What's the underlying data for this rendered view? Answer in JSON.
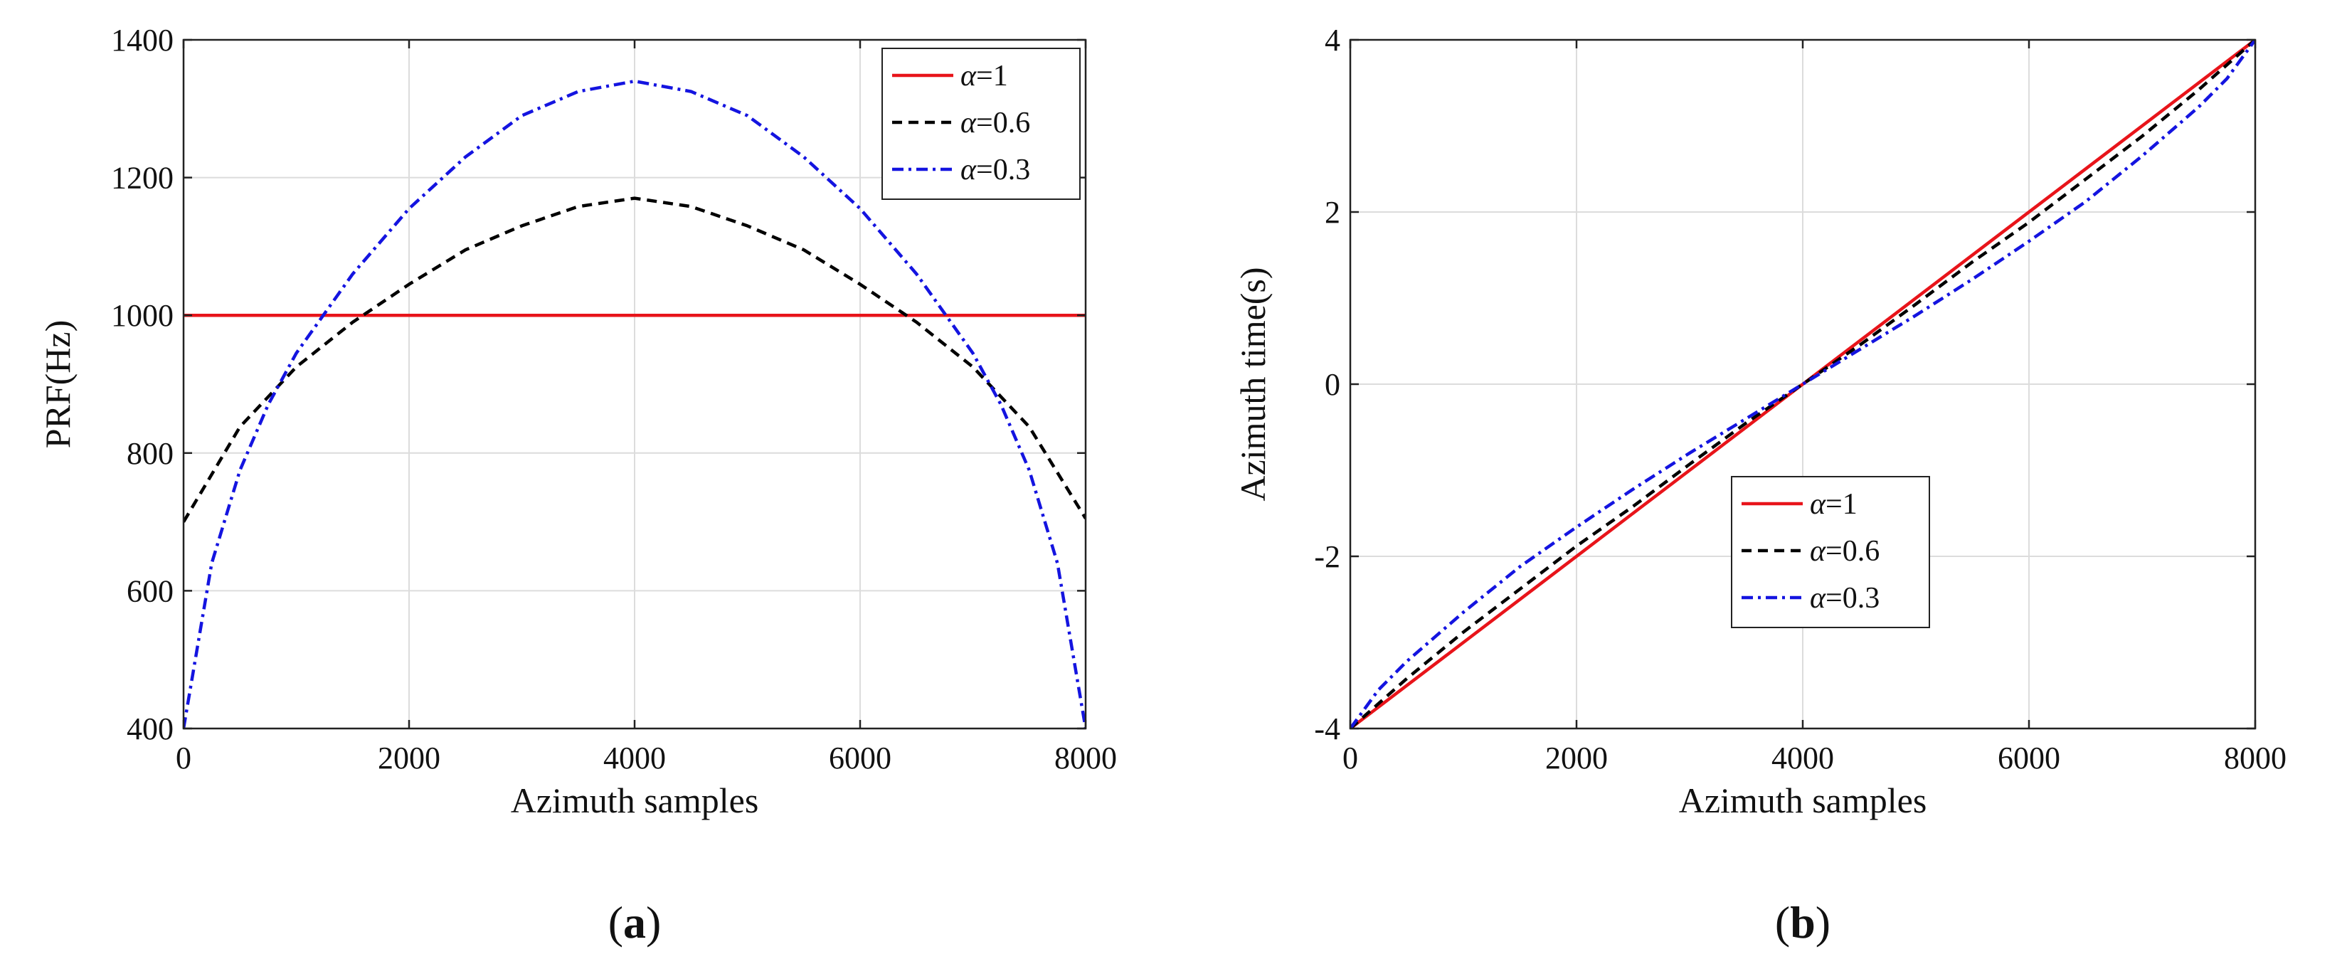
{
  "chart_data": [
    {
      "id": "a",
      "type": "line",
      "caption_letter": "a",
      "xlabel": "Azimuth samples",
      "ylabel": "PRF(Hz)",
      "xlim": [
        0,
        8000
      ],
      "ylim": [
        400,
        1400
      ],
      "xticks": [
        0,
        2000,
        4000,
        6000,
        8000
      ],
      "yticks": [
        400,
        600,
        800,
        1000,
        1200,
        1400
      ],
      "grid": true,
      "legend_position": "top-right",
      "series": [
        {
          "name": "α=1",
          "symbol": "α",
          "value_label": "=1",
          "color": "#e8141a",
          "style": "solid",
          "x": [
            0,
            1000,
            2000,
            3000,
            4000,
            5000,
            6000,
            7000,
            8000
          ],
          "y": [
            1000,
            1000,
            1000,
            1000,
            1000,
            1000,
            1000,
            1000,
            1000
          ]
        },
        {
          "name": "α=0.6",
          "symbol": "α",
          "value_label": "=0.6",
          "color": "#000000",
          "style": "dashed",
          "x": [
            0,
            500,
            1000,
            1500,
            2000,
            2500,
            3000,
            3500,
            4000,
            4500,
            5000,
            5500,
            6000,
            6500,
            7000,
            7500,
            8000
          ],
          "y": [
            700,
            838,
            925,
            990,
            1045,
            1095,
            1130,
            1158,
            1170,
            1158,
            1130,
            1095,
            1045,
            990,
            925,
            838,
            705
          ]
        },
        {
          "name": "α=0.3",
          "symbol": "α",
          "value_label": "=0.3",
          "color": "#1414e0",
          "style": "dashdot",
          "x": [
            0,
            250,
            500,
            750,
            1000,
            1500,
            2000,
            2500,
            3000,
            3500,
            4000,
            4500,
            5000,
            5500,
            6000,
            6500,
            7000,
            7250,
            7500,
            7750,
            8000
          ],
          "y": [
            400,
            640,
            775,
            870,
            945,
            1060,
            1155,
            1230,
            1290,
            1325,
            1340,
            1325,
            1290,
            1230,
            1155,
            1060,
            945,
            870,
            775,
            640,
            400
          ]
        }
      ]
    },
    {
      "id": "b",
      "type": "line",
      "caption_letter": "b",
      "xlabel": "Azimuth samples",
      "ylabel": "Azimuth time(s)",
      "xlim": [
        0,
        8000
      ],
      "ylim": [
        -4,
        4
      ],
      "xticks": [
        0,
        2000,
        4000,
        6000,
        8000
      ],
      "yticks": [
        -4,
        -2,
        0,
        2,
        4
      ],
      "grid": true,
      "legend_position": "center-bottom",
      "series": [
        {
          "name": "α=1",
          "symbol": "α",
          "value_label": "=1",
          "color": "#e8141a",
          "style": "solid",
          "x": [
            0,
            8000
          ],
          "y": [
            -4,
            4
          ]
        },
        {
          "name": "α=0.6",
          "symbol": "α",
          "value_label": "=0.6",
          "color": "#000000",
          "style": "dashed",
          "x": [
            0,
            500,
            1000,
            1500,
            2000,
            2500,
            3000,
            3500,
            4000,
            4500,
            5000,
            5500,
            6000,
            6500,
            7000,
            7500,
            8000
          ],
          "y": [
            -4,
            -3.42,
            -2.88,
            -2.38,
            -1.88,
            -1.42,
            -0.93,
            -0.45,
            0,
            0.45,
            0.93,
            1.42,
            1.88,
            2.38,
            2.88,
            3.42,
            4
          ]
        },
        {
          "name": "α=0.3",
          "symbol": "α",
          "value_label": "=0.3",
          "color": "#1414e0",
          "style": "dashdot",
          "x": [
            0,
            250,
            500,
            1000,
            1500,
            2000,
            2500,
            3000,
            3500,
            4000,
            4500,
            5000,
            5500,
            6000,
            6500,
            7000,
            7500,
            7750,
            8000
          ],
          "y": [
            -4,
            -3.55,
            -3.22,
            -2.65,
            -2.12,
            -1.66,
            -1.22,
            -0.8,
            -0.4,
            0,
            0.4,
            0.8,
            1.22,
            1.66,
            2.12,
            2.65,
            3.22,
            3.55,
            4
          ]
        }
      ]
    }
  ]
}
